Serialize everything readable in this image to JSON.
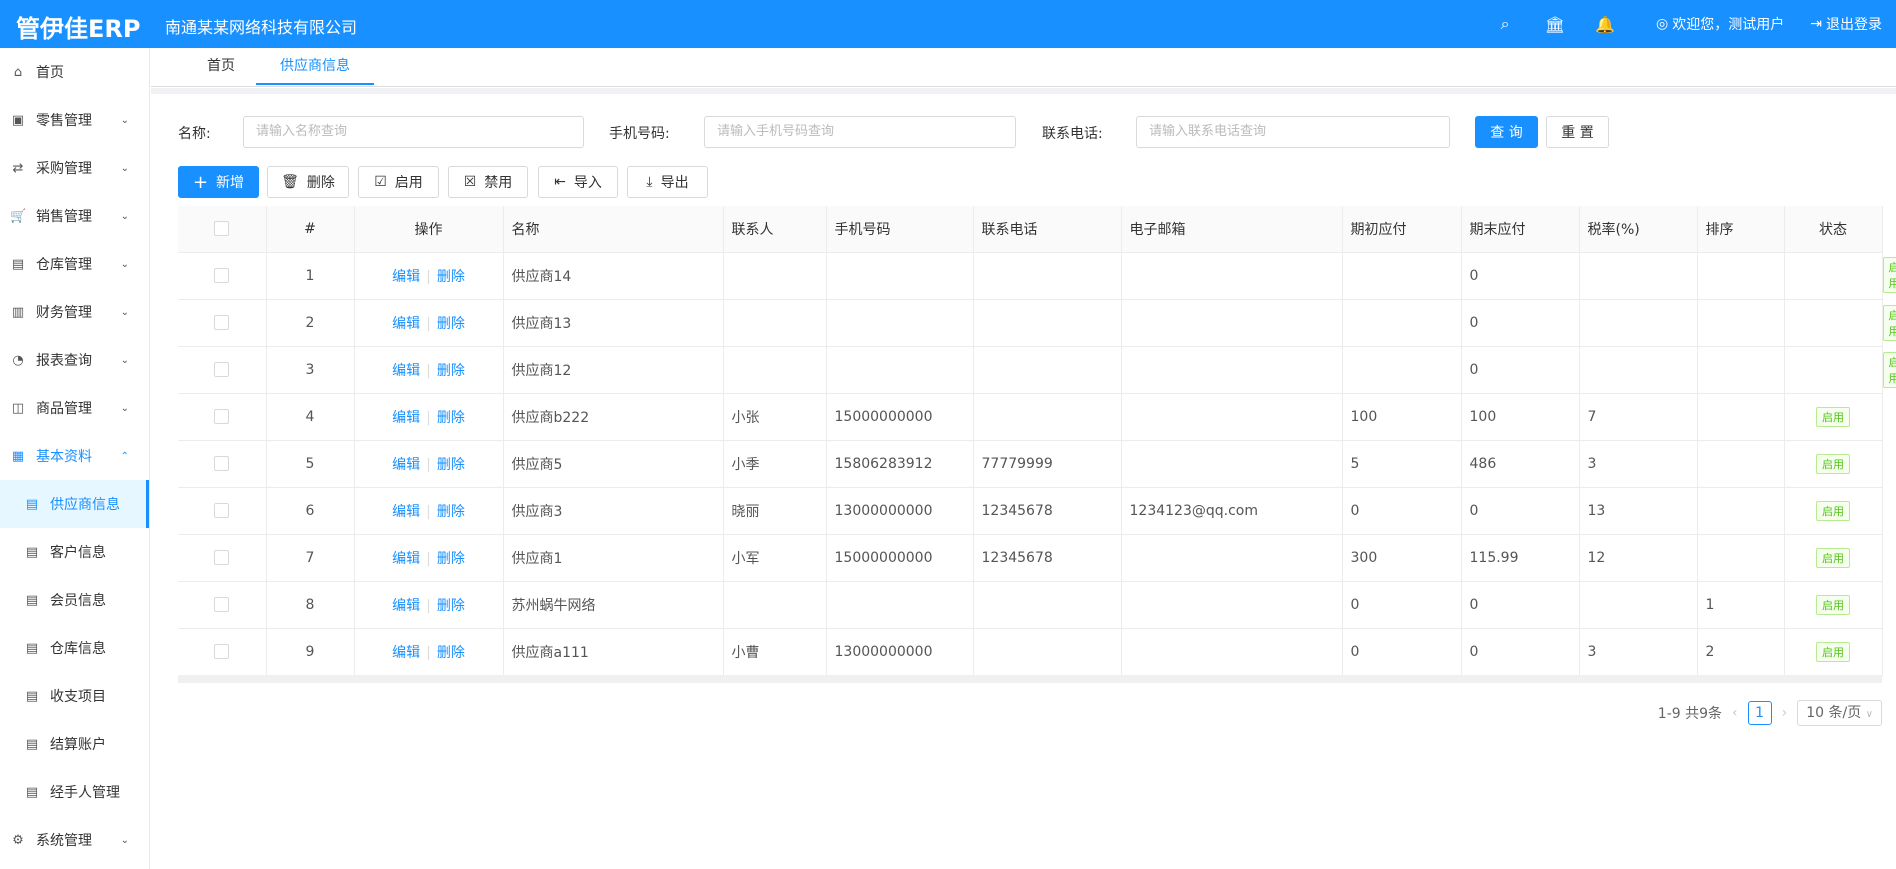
{
  "header": {
    "logo": "管伊佳ERP",
    "company": "南通某某网络科技有限公司",
    "welcome": "欢迎您，测试用户",
    "logout": "退出登录"
  },
  "sidebar": {
    "items": [
      {
        "label": "首页",
        "icon": "home-icon",
        "glyph": "⌂"
      },
      {
        "label": "零售管理",
        "icon": "gift-icon",
        "glyph": "▣",
        "chev": "⌄"
      },
      {
        "label": "采购管理",
        "icon": "swap-icon",
        "glyph": "⇄",
        "chev": "⌄"
      },
      {
        "label": "销售管理",
        "icon": "cart-icon",
        "glyph": "🛒",
        "chev": "⌄"
      },
      {
        "label": "仓库管理",
        "icon": "warehouse-icon",
        "glyph": "▤",
        "chev": "⌄"
      },
      {
        "label": "财务管理",
        "icon": "account-book-icon",
        "glyph": "▥",
        "chev": "⌄"
      },
      {
        "label": "报表查询",
        "icon": "pie-chart-icon",
        "glyph": "◔",
        "chev": "⌄"
      },
      {
        "label": "商品管理",
        "icon": "shopping-icon",
        "glyph": "◫",
        "chev": "⌄"
      },
      {
        "label": "基本资料",
        "icon": "appstore-icon",
        "glyph": "▦",
        "chev": "⌃"
      },
      {
        "label": "供应商信息",
        "icon": "profile-icon",
        "glyph": "▤"
      },
      {
        "label": "客户信息",
        "icon": "profile-icon",
        "glyph": "▤"
      },
      {
        "label": "会员信息",
        "icon": "profile-icon",
        "glyph": "▤"
      },
      {
        "label": "仓库信息",
        "icon": "profile-icon",
        "glyph": "▤"
      },
      {
        "label": "收支项目",
        "icon": "profile-icon",
        "glyph": "▤"
      },
      {
        "label": "结算账户",
        "icon": "profile-icon",
        "glyph": "▤"
      },
      {
        "label": "经手人管理",
        "icon": "profile-icon",
        "glyph": "▤"
      },
      {
        "label": "系统管理",
        "icon": "setting-icon",
        "glyph": "⚙",
        "chev": "⌄"
      }
    ]
  },
  "tabs": [
    "首页",
    "供应商信息"
  ],
  "search": {
    "name_label": "名称:",
    "name_ph": "请输入名称查询",
    "phone_label": "手机号码:",
    "phone_ph": "请输入手机号码查询",
    "tel_label": "联系电话:",
    "tel_ph": "请输入联系电话查询",
    "query": "查 询",
    "reset": "重 置"
  },
  "toolbar": {
    "add": "新增",
    "delete": "删除",
    "enable": "启用",
    "disable": "禁用",
    "import": "导入",
    "export": "导出"
  },
  "table": {
    "columns": [
      "#",
      "操作",
      "名称",
      "联系人",
      "手机号码",
      "联系电话",
      "电子邮箱",
      "期初应付",
      "期末应付",
      "税率(%)",
      "排序",
      "状态"
    ],
    "edit": "编辑",
    "del": "删除",
    "status": "启用",
    "rows": [
      [
        "1",
        "供应商14",
        "",
        "",
        "",
        "",
        "",
        "0",
        "",
        "",
        ""
      ],
      [
        "2",
        "供应商13",
        "",
        "",
        "",
        "",
        "",
        "0",
        "",
        "",
        ""
      ],
      [
        "3",
        "供应商12",
        "",
        "",
        "",
        "",
        "",
        "0",
        "",
        "",
        ""
      ],
      [
        "4",
        "供应商b222",
        "小张",
        "15000000000",
        "",
        "",
        "100",
        "100",
        "7",
        ""
      ],
      [
        "5",
        "供应商5",
        "小季",
        "15806283912",
        "77779999",
        "",
        "5",
        "486",
        "3",
        ""
      ],
      [
        "6",
        "供应商3",
        "晓丽",
        "13000000000",
        "12345678",
        "1234123@qq.com",
        "0",
        "0",
        "13",
        ""
      ],
      [
        "7",
        "供应商1",
        "小军",
        "15000000000",
        "12345678",
        "",
        "300",
        "115.99",
        "12",
        ""
      ],
      [
        "8",
        "苏州蜗牛网络",
        "",
        "",
        "",
        "",
        "0",
        "0",
        "",
        "1"
      ],
      [
        "9",
        "供应商a111",
        "小曹",
        "13000000000",
        "",
        "",
        "0",
        "0",
        "3",
        "2"
      ]
    ]
  },
  "pagination": {
    "summary": "1-9 共9条",
    "page": "1",
    "page_size": "10 条/页"
  }
}
